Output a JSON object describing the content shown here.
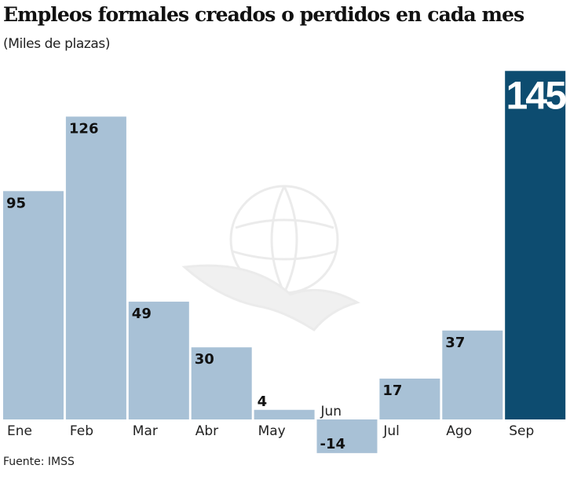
{
  "chart_data": {
    "type": "bar",
    "title": "Empleos formales creados o perdidos en cada mes",
    "subtitle": "(Miles de plazas)",
    "source": "Fuente: IMSS",
    "categories": [
      "Ene",
      "Feb",
      "Mar",
      "Abr",
      "May",
      "Jun",
      "Jul",
      "Ago",
      "Sep"
    ],
    "values": [
      95,
      126,
      49,
      30,
      4,
      -14,
      17,
      37,
      145
    ],
    "highlight_index": 8,
    "colors": {
      "bar": "#a8c1d6",
      "highlight": "#0d4c70"
    },
    "grid": false
  }
}
